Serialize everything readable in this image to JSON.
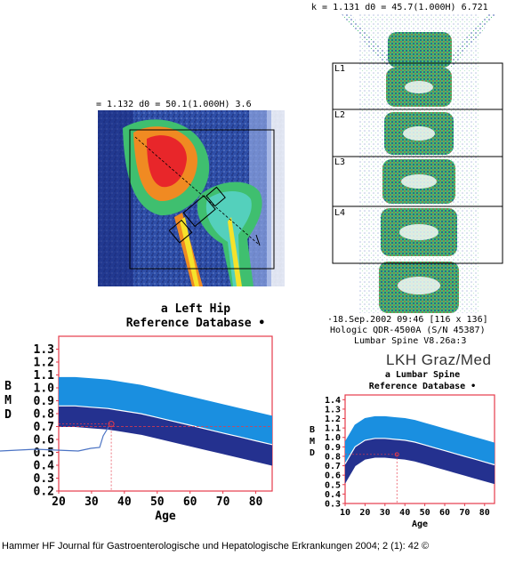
{
  "hip_scan": {
    "header_text": "= 1.132  d0 =  50.1(1.000H)  3.6",
    "caption": "a Left Hip",
    "subcaption": "Reference Database •"
  },
  "spine_scan": {
    "header_text": "k = 1.131  d0 =  45.7(1.000H)  6.721",
    "regions": [
      "L1",
      "L2",
      "L3",
      "L4"
    ],
    "footer_line1": "·18.Sep.2002 09:46  [116 x 136]",
    "footer_line2": "Hologic QDR-4500A (S/N 45387)",
    "footer_line3": "Lumbar Spine V8.26a:3"
  },
  "brand": "LKH Graz/Med",
  "spine_chart_titles": {
    "line1": "a Lumbar Spine",
    "line2": "Reference Database •"
  },
  "citation": "Hammer HF Journal für Gastroenterologische und Hepatologische Erkrankungen 2004; 2 (1): 42 ©",
  "chart_data": [
    {
      "type": "area",
      "title": "Reference Database •",
      "xlabel": "Age",
      "ylabel": "BMD",
      "xlim": [
        20,
        85
      ],
      "ylim": [
        0.2,
        1.4
      ],
      "x_ticks": [
        20,
        30,
        40,
        50,
        60,
        70,
        80
      ],
      "y_ticks": [
        0.2,
        0.3,
        0.4,
        0.5,
        0.6,
        0.7,
        0.8,
        0.9,
        1.0,
        1.1,
        1.2,
        1.3
      ],
      "x": [
        20,
        25,
        30,
        35,
        40,
        45,
        50,
        55,
        60,
        65,
        70,
        75,
        80,
        85
      ],
      "series": [
        {
          "name": "",
          "values": [
            1.08,
            1.08,
            1.07,
            1.06,
            1.04,
            1.02,
            0.99,
            0.96,
            0.93,
            0.9,
            0.87,
            0.84,
            0.81,
            0.78
          ]
        },
        {
          "name": "",
          "values": [
            0.86,
            0.86,
            0.85,
            0.84,
            0.82,
            0.8,
            0.77,
            0.74,
            0.71,
            0.68,
            0.65,
            0.62,
            0.59,
            0.56
          ]
        },
        {
          "name": "",
          "values": [
            0.7,
            0.7,
            0.69,
            0.68,
            0.66,
            0.64,
            0.61,
            0.58,
            0.55,
            0.52,
            0.49,
            0.46,
            0.43,
            0.4
          ]
        }
      ],
      "patient_point": {
        "x": 36,
        "y": 0.72
      },
      "reference_line_y": 0.7,
      "grid": false
    },
    {
      "type": "area",
      "title": "Reference Database •",
      "xlabel": "Age",
      "ylabel": "BMD",
      "xlim": [
        10,
        85
      ],
      "ylim": [
        0.3,
        1.45
      ],
      "x_ticks": [
        10,
        20,
        30,
        40,
        50,
        60,
        70,
        80
      ],
      "y_ticks": [
        0.3,
        0.4,
        0.5,
        0.6,
        0.7,
        0.8,
        0.9,
        1.0,
        1.1,
        1.2,
        1.3,
        1.4
      ],
      "x": [
        10,
        15,
        20,
        25,
        30,
        35,
        40,
        45,
        50,
        55,
        60,
        65,
        70,
        75,
        80,
        85
      ],
      "series": [
        {
          "name": "",
          "values": [
            0.95,
            1.13,
            1.2,
            1.22,
            1.22,
            1.21,
            1.2,
            1.18,
            1.15,
            1.12,
            1.09,
            1.06,
            1.03,
            1.0,
            0.97,
            0.94
          ]
        },
        {
          "name": "",
          "values": [
            0.72,
            0.9,
            0.97,
            0.99,
            0.99,
            0.98,
            0.97,
            0.95,
            0.92,
            0.89,
            0.86,
            0.83,
            0.8,
            0.77,
            0.74,
            0.71
          ]
        },
        {
          "name": "",
          "values": [
            0.52,
            0.7,
            0.77,
            0.79,
            0.79,
            0.78,
            0.77,
            0.75,
            0.72,
            0.69,
            0.66,
            0.63,
            0.6,
            0.57,
            0.54,
            0.51
          ]
        }
      ],
      "patient_point": {
        "x": 36,
        "y": 0.82
      },
      "grid": false
    }
  ]
}
